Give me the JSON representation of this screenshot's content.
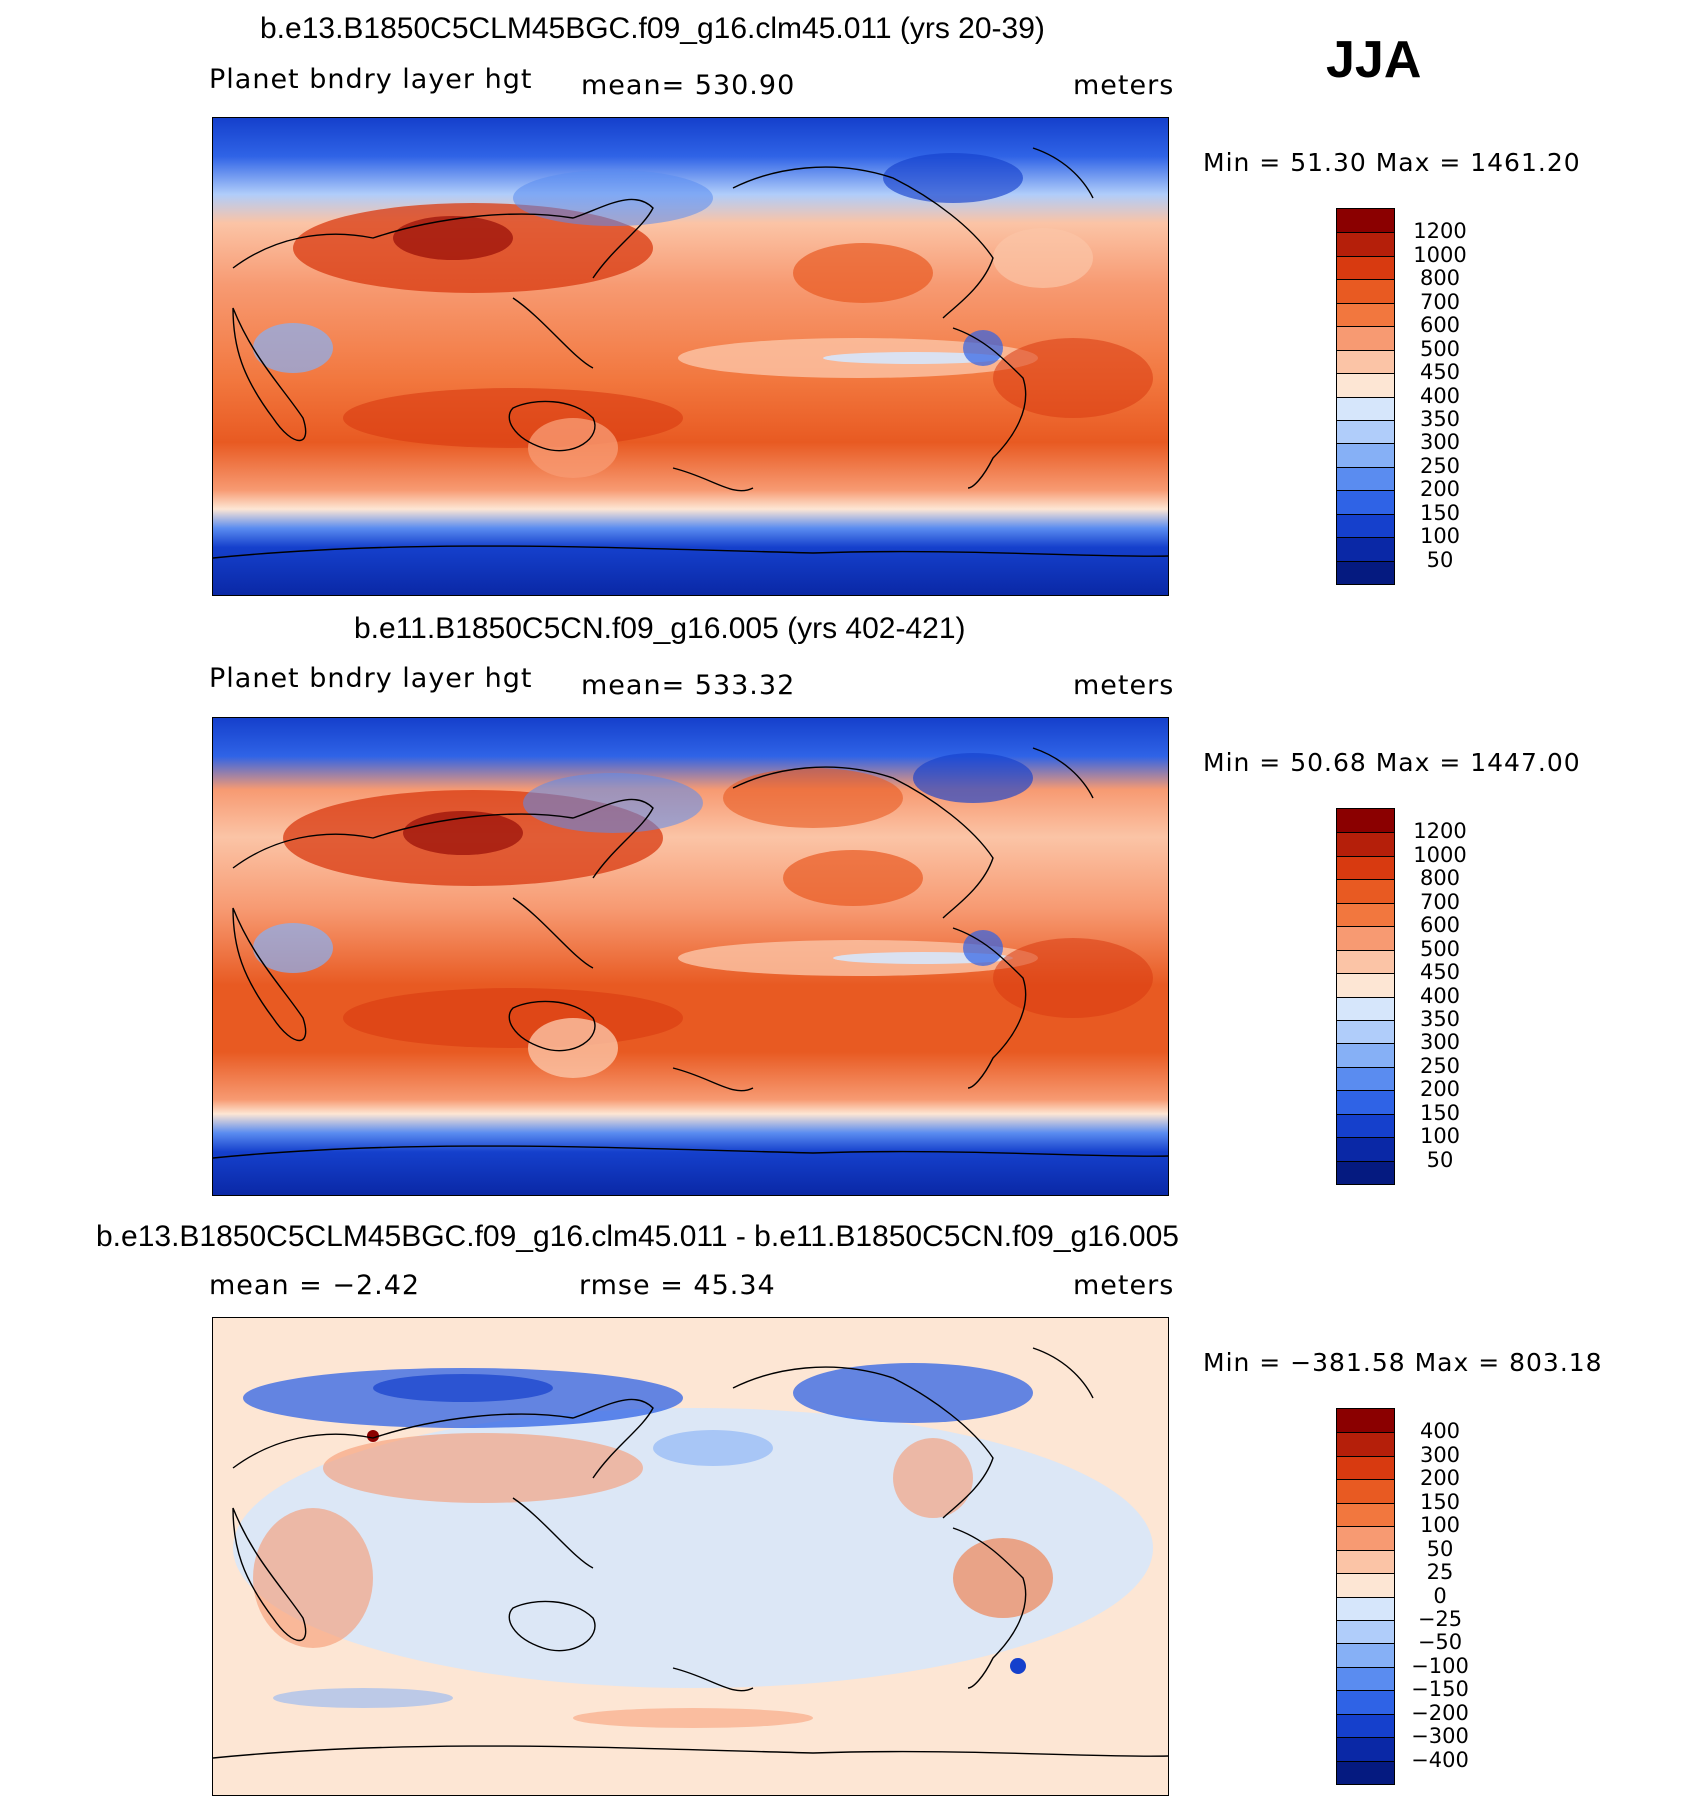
{
  "season": "JJA",
  "panels": [
    {
      "title": "b.e13.B1850C5CLM45BGC.f09_g16.clm45.011 (yrs 20-39)",
      "left_label": "Planet bndry layer hgt",
      "center_label": "mean= 530.90",
      "units": "meters",
      "minmax": "Min =   51.30 Max = 1461.20",
      "colorbar": {
        "labels": [
          "1200",
          "1000",
          "800",
          "700",
          "600",
          "500",
          "450",
          "400",
          "350",
          "300",
          "250",
          "200",
          "150",
          "100",
          "50"
        ],
        "colors": [
          "#8b0000",
          "#b51f0a",
          "#d83a10",
          "#e85a22",
          "#f2773e",
          "#f79a72",
          "#fbc4a6",
          "#fde6d4",
          "#d6e6fb",
          "#b0cdfa",
          "#86b0f6",
          "#5a8cf0",
          "#2f63e6",
          "#1540cc",
          "#0a28a6",
          "#051a80"
        ]
      }
    },
    {
      "title": "b.e11.B1850C5CN.f09_g16.005 (yrs 402-421)",
      "left_label": "Planet bndry layer hgt",
      "center_label": "mean= 533.32",
      "units": "meters",
      "minmax": "Min =   50.68 Max = 1447.00",
      "colorbar": {
        "labels": [
          "1200",
          "1000",
          "800",
          "700",
          "600",
          "500",
          "450",
          "400",
          "350",
          "300",
          "250",
          "200",
          "150",
          "100",
          "50"
        ],
        "colors": [
          "#8b0000",
          "#b51f0a",
          "#d83a10",
          "#e85a22",
          "#f2773e",
          "#f79a72",
          "#fbc4a6",
          "#fde6d4",
          "#d6e6fb",
          "#b0cdfa",
          "#86b0f6",
          "#5a8cf0",
          "#2f63e6",
          "#1540cc",
          "#0a28a6",
          "#051a80"
        ]
      }
    },
    {
      "title": "b.e13.B1850C5CLM45BGC.f09_g16.clm45.011 - b.e11.B1850C5CN.f09_g16.005",
      "left_label": "mean =   −2.42",
      "center_label": "rmse =   45.34",
      "units": "meters",
      "minmax": "Min = −381.58 Max = 803.18",
      "colorbar": {
        "labels": [
          "400",
          "300",
          "200",
          "150",
          "100",
          "50",
          "25",
          "0",
          "−25",
          "−50",
          "−100",
          "−150",
          "−200",
          "−300",
          "−400"
        ],
        "colors": [
          "#8b0000",
          "#b51f0a",
          "#d83a10",
          "#e85a22",
          "#f2773e",
          "#f79a72",
          "#fbc4a6",
          "#fde6d4",
          "#d6e6fb",
          "#b0cdfa",
          "#86b0f6",
          "#5a8cf0",
          "#2f63e6",
          "#1540cc",
          "#0a28a6",
          "#051a80"
        ]
      }
    }
  ]
}
